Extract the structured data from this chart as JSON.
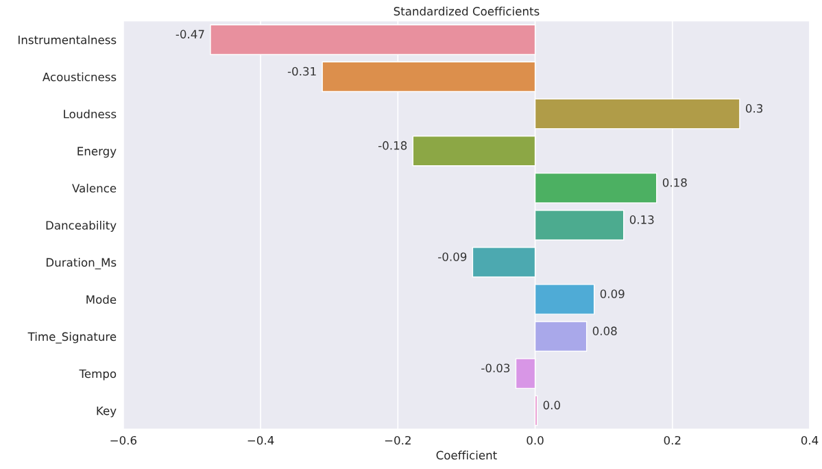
{
  "chart_data": {
    "type": "bar",
    "orientation": "horizontal",
    "title": "Standardized Coefficients",
    "xlabel": "Coefficient",
    "categories": [
      "Instrumentalness",
      "Acousticness",
      "Loudness",
      "Energy",
      "Valence",
      "Danceability",
      "Duration_Ms",
      "Mode",
      "Time_Signature",
      "Tempo",
      "Key"
    ],
    "values": [
      -0.473,
      -0.31,
      0.298,
      -0.178,
      0.177,
      0.129,
      -0.091,
      0.086,
      0.075,
      -0.028,
      0.003
    ],
    "value_labels": [
      "-0.47",
      "-0.31",
      "0.3",
      "-0.18",
      "0.18",
      "0.13",
      "-0.09",
      "0.09",
      "0.08",
      "-0.03",
      "0.0"
    ],
    "colors": [
      "#e8909e",
      "#dc8f4c",
      "#b09c48",
      "#8ca745",
      "#4cb062",
      "#4cab8f",
      "#4ca9b0",
      "#4fabd6",
      "#a9a8ea",
      "#d896e6",
      "#e68fcc"
    ],
    "xlim": [
      -0.6,
      0.4
    ],
    "xticks": [
      {
        "value": -0.6,
        "label": "−0.6"
      },
      {
        "value": -0.4,
        "label": "−0.4"
      },
      {
        "value": -0.2,
        "label": "−0.2"
      },
      {
        "value": 0,
        "label": "0.0"
      },
      {
        "value": 0.2,
        "label": "0.2"
      },
      {
        "value": 0.4,
        "label": "0.4"
      }
    ],
    "grid": "x",
    "legend": false
  }
}
